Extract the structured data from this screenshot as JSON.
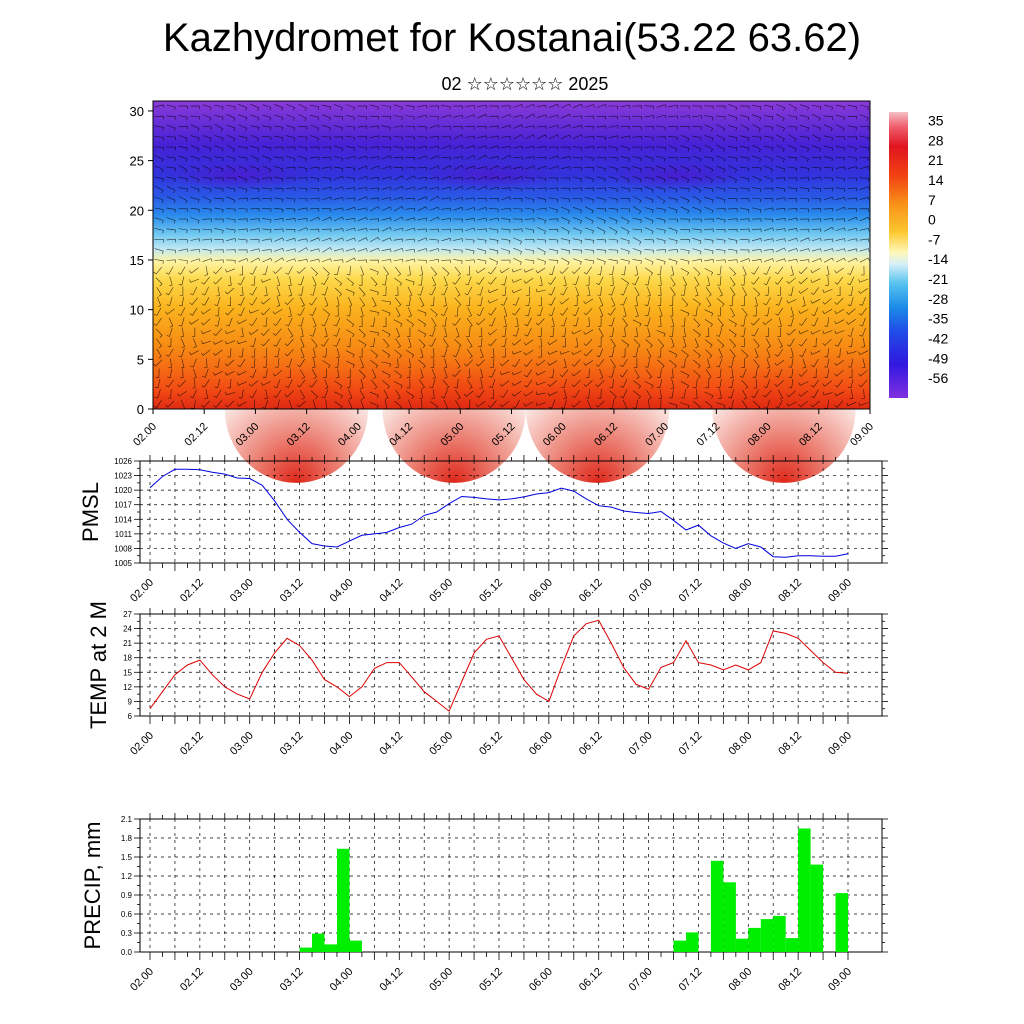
{
  "page": {
    "title": "Kazhydromet for Kostanai(53.22 63.62)",
    "subtitle": "02 ☆☆☆☆☆☆ 2025"
  },
  "colors": {
    "pmsl_line": "#0000dd",
    "temp_line": "#dd0000",
    "precip_bar": "#00ee00",
    "precip_bar_edge": "#000000"
  },
  "chart_data": [
    {
      "type": "heatmap",
      "name": "cross-section",
      "xticklabels": [
        "02.00",
        "02.12",
        "03.00",
        "03.12",
        "04.00",
        "04.12",
        "05.00",
        "05.12",
        "06.00",
        "06.12",
        "07.00",
        "07.12",
        "08.00",
        "08.12",
        "09.00"
      ],
      "yticklabels": [
        "0",
        "5",
        "10",
        "15",
        "20",
        "25",
        "30"
      ],
      "ylim": [
        0,
        31
      ],
      "colorbar": {
        "labels": [
          "35",
          "28",
          "21",
          "14",
          "7",
          "0",
          "-7",
          "-14",
          "-21",
          "-28",
          "-35",
          "-42",
          "-49",
          "-56"
        ],
        "range": [
          -63,
          38
        ]
      }
    },
    {
      "type": "line",
      "name": "pmsl",
      "ylabel": "PMSL",
      "ylim": [
        1005,
        1026
      ],
      "yticks": [
        "1005",
        "1008",
        "1011",
        "1014",
        "1017",
        "1020",
        "1023",
        "1026"
      ],
      "xticklabels": [
        "02.00",
        "02.12",
        "03.00",
        "03.12",
        "04.00",
        "04.12",
        "05.00",
        "05.12",
        "06.00",
        "06.12",
        "07.00",
        "07.12",
        "08.00",
        "08.12",
        "09.00"
      ],
      "x_hours": [
        0,
        3,
        6,
        9,
        12,
        15,
        18,
        21,
        24,
        27,
        30,
        33,
        36,
        39,
        42,
        45,
        48,
        51,
        54,
        57,
        60,
        63,
        66,
        69,
        72,
        75,
        78,
        81,
        84,
        87,
        90,
        93,
        96,
        99,
        102,
        105,
        108,
        111,
        114,
        117,
        120,
        123,
        126,
        129,
        132,
        135,
        138,
        141,
        144,
        147,
        150,
        153,
        156,
        159,
        162,
        165,
        168
      ],
      "values": [
        1020.5,
        1022.8,
        1024.3,
        1024.3,
        1024.2,
        1023.7,
        1023.3,
        1022.5,
        1022.4,
        1021.0,
        1017.8,
        1014.0,
        1011.3,
        1009.0,
        1008.5,
        1008.3,
        1009.5,
        1010.7,
        1011.0,
        1011.3,
        1012.3,
        1013.0,
        1014.8,
        1015.5,
        1017.2,
        1018.7,
        1018.5,
        1018.2,
        1018.0,
        1018.2,
        1018.6,
        1019.2,
        1019.5,
        1020.4,
        1019.8,
        1018.2,
        1016.8,
        1016.5,
        1015.7,
        1015.4,
        1015.2,
        1015.6,
        1013.8,
        1011.8,
        1012.8,
        1010.6,
        1009.1,
        1008.0,
        1009.0,
        1008.3,
        1006.3,
        1006.2,
        1006.5,
        1006.5,
        1006.4,
        1006.4,
        1006.9
      ]
    },
    {
      "type": "line",
      "name": "temp",
      "ylabel": "TEMP at 2 M",
      "ylim": [
        6,
        27
      ],
      "yticks": [
        "6",
        "9",
        "12",
        "15",
        "18",
        "21",
        "24",
        "27"
      ],
      "xticklabels": [
        "02.00",
        "02.12",
        "03.00",
        "03.12",
        "04.00",
        "04.12",
        "05.00",
        "05.12",
        "06.00",
        "06.12",
        "07.00",
        "07.12",
        "08.00",
        "08.12",
        "09.00"
      ],
      "x_hours": [
        0,
        3,
        6,
        9,
        12,
        15,
        18,
        21,
        24,
        27,
        30,
        33,
        36,
        39,
        42,
        45,
        48,
        51,
        54,
        57,
        60,
        63,
        66,
        69,
        72,
        75,
        78,
        81,
        84,
        87,
        90,
        93,
        96,
        99,
        102,
        105,
        108,
        111,
        114,
        117,
        120,
        123,
        126,
        129,
        132,
        135,
        138,
        141,
        144,
        147,
        150,
        153,
        156,
        159,
        162,
        165,
        168
      ],
      "values": [
        7.5,
        11.0,
        14.5,
        16.5,
        17.5,
        14.5,
        12.0,
        10.5,
        9.5,
        15.0,
        19.0,
        22.0,
        20.5,
        17.5,
        13.5,
        12.0,
        10.0,
        12.0,
        15.8,
        17.0,
        17.0,
        14.0,
        11.0,
        9.0,
        7.0,
        13.0,
        19.0,
        21.8,
        22.5,
        18.0,
        13.5,
        10.5,
        9.0,
        16.0,
        22.5,
        25.0,
        25.7,
        21.0,
        16.0,
        12.5,
        11.5,
        16.0,
        17.0,
        21.5,
        17.0,
        16.5,
        15.5,
        16.5,
        15.5,
        17.0,
        23.5,
        23.0,
        22.0,
        19.5,
        17.0,
        15.0,
        14.8
      ]
    },
    {
      "type": "bar",
      "name": "precip",
      "ylabel": "PRECIP, mm",
      "ylim": [
        0,
        2.1
      ],
      "yticks": [
        "0.0",
        "0.3",
        "0.6",
        "0.9",
        "1.2",
        "1.5",
        "1.8",
        "2.1"
      ],
      "xticklabels": [
        "02.00",
        "02.12",
        "03.00",
        "03.12",
        "04.00",
        "04.12",
        "05.00",
        "05.12",
        "06.00",
        "06.12",
        "07.00",
        "07.12",
        "08.00",
        "08.12",
        "09.00"
      ],
      "x_hours": [
        0,
        3,
        6,
        9,
        12,
        15,
        18,
        21,
        24,
        27,
        30,
        33,
        36,
        39,
        42,
        45,
        48,
        51,
        54,
        57,
        60,
        63,
        66,
        69,
        72,
        75,
        78,
        81,
        84,
        87,
        90,
        93,
        96,
        99,
        102,
        105,
        108,
        111,
        114,
        117,
        120,
        123,
        126,
        129,
        132,
        135,
        138,
        141,
        144,
        147,
        150,
        153,
        156,
        159,
        162,
        165
      ],
      "values": [
        0,
        0,
        0,
        0,
        0,
        0,
        0,
        0,
        0,
        0,
        0,
        0,
        0.07,
        0.29,
        0.12,
        1.63,
        0.18,
        0,
        0,
        0,
        0,
        0,
        0,
        0,
        0,
        0,
        0,
        0,
        0,
        0,
        0,
        0,
        0,
        0,
        0,
        0,
        0,
        0,
        0,
        0,
        0,
        0,
        0.18,
        0.31,
        0,
        1.44,
        1.1,
        0.21,
        0.38,
        0.52,
        0.57,
        0.22,
        1.95,
        1.38,
        0,
        0.93
      ]
    }
  ]
}
